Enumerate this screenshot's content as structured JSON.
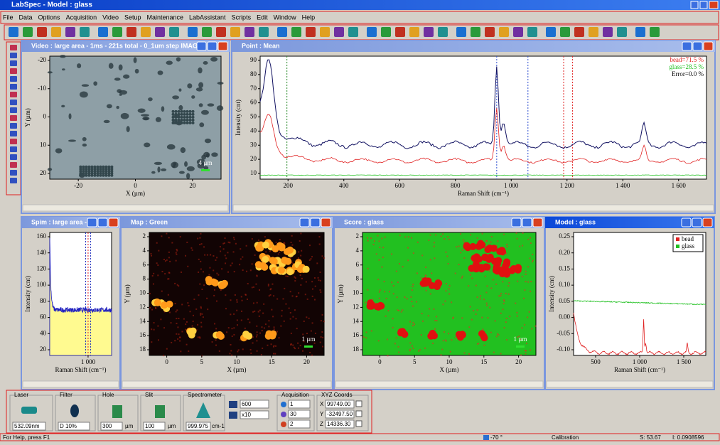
{
  "title_bar": "LabSpec - Model : glass",
  "menu": [
    "File",
    "Data",
    "Options",
    "Acquisition",
    "Video",
    "Setup",
    "Maintenance",
    "LabAssistant",
    "Scripts",
    "Edit",
    "Window",
    "Help"
  ],
  "windows": [
    {
      "title": "Video : large area - 1ms - 221s total - 0_1um step IMAGE",
      "x_label": "X (µm)",
      "y_label": "Y (µm)",
      "xticks": [
        "-20",
        "0",
        "20"
      ],
      "yticks": [
        "-20",
        "-10",
        "0",
        "10",
        "20"
      ],
      "scale_bar": "4 µm"
    },
    {
      "title": "Point : Mean",
      "x_label": "Raman Shift (cm⁻¹)",
      "y_label": "Intensity (cnt)",
      "xticks": [
        "200",
        "400",
        "600",
        "800",
        "1 000",
        "1 200",
        "1 400",
        "1 600"
      ],
      "yticks": [
        "90",
        "80",
        "70",
        "60",
        "50",
        "40",
        "30",
        "20",
        "10"
      ],
      "legend": [
        "bead=71.5 %",
        "glass=28.5 %",
        "Error=0.0 %"
      ]
    },
    {
      "title": "Spim : large area - ...",
      "x_label": "Raman Shift (cm⁻¹)",
      "y_label": "Intensity (cnt)",
      "xticks": [
        "1 000"
      ],
      "yticks": [
        "160",
        "140",
        "120",
        "100",
        "80",
        "60",
        "40",
        "20"
      ]
    },
    {
      "title": "Map : Green",
      "x_label": "X (µm)",
      "y_label": "Y (µm)",
      "xticks": [
        "0",
        "5",
        "10",
        "15",
        "20"
      ],
      "yticks": [
        "2",
        "4",
        "6",
        "8",
        "10",
        "12",
        "14",
        "16",
        "18"
      ],
      "scale_bar": "1 µm"
    },
    {
      "title": "Score : glass",
      "x_label": "X (µm)",
      "y_label": "Y (µm)",
      "xticks": [
        "0",
        "5",
        "10",
        "15",
        "20"
      ],
      "yticks": [
        "2",
        "4",
        "6",
        "8",
        "10",
        "12",
        "14",
        "16",
        "18"
      ],
      "scale_bar": "1 µm"
    },
    {
      "title": "Model : glass",
      "x_label": "Raman Shift (cm⁻¹)",
      "y_label": "Intensity (cnt)",
      "xticks": [
        "500",
        "1 000",
        "1 500"
      ],
      "yticks": [
        "0.25",
        "0.20",
        "0.15",
        "0.10",
        "0.05",
        "0.00",
        "-0.05",
        "-0.10"
      ],
      "legend": [
        "bead",
        "glass"
      ]
    }
  ],
  "controls": {
    "laser": {
      "label": "Laser",
      "value": "532.09nm"
    },
    "filter": {
      "label": "Filter",
      "value": "D 10%"
    },
    "hole": {
      "label": "Hole",
      "value": "300",
      "unit": "µm"
    },
    "slit": {
      "label": "Slit",
      "value": "100",
      "unit": "µm"
    },
    "spectrometer": {
      "label": "Spectrometer",
      "value": "999.975",
      "unit": "cm-1"
    },
    "grating": "600",
    "objective": "x10",
    "acquisition": {
      "label": "Acquisition",
      "values": [
        "1",
        "30",
        "2"
      ]
    },
    "xyz": {
      "label": "XYZ Coords",
      "axes": [
        "X",
        "Y",
        "Z"
      ],
      "values": [
        "99749.00",
        "-32497.50",
        "14336.30"
      ]
    }
  },
  "status": {
    "help": "For Help, press F1",
    "temperature": "-70 °",
    "calibration": "Calibration",
    "s": "S: 53.67",
    "i": "I: 0.0908596"
  }
}
